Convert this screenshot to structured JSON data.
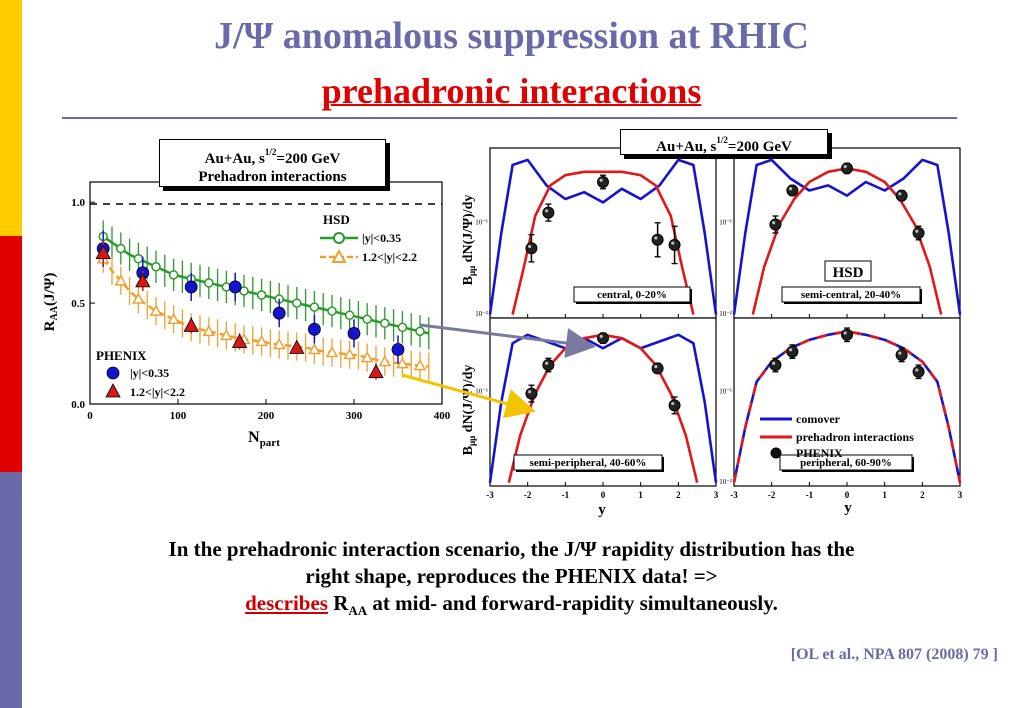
{
  "slide": {
    "title": "J/Ψ anomalous suppression at RHIC",
    "subtitle": "prehadronic interactions",
    "box_left": {
      "line1_pre": "Au+Au, s",
      "line1_sup": "1/2",
      "line1_post": "=200 GeV",
      "line2": "Prehadron interactions"
    },
    "box_right": {
      "pre": "Au+Au, s",
      "sup": "1/2",
      "post": "=200 GeV"
    },
    "body_line1": "In the prehadronic interaction scenario, the J/Ψ rapidity distribution has the",
    "body_line2": "right shape, reproduces the PHENIX data!  =>",
    "body_line3_red": "describes",
    "body_line3_R": " R",
    "body_line3_sub": "AA",
    "body_line3_rest": " at mid- and forward-rapidity simultaneously.",
    "citation": "[OL et al., NPA 807 (2008) 79 ]",
    "colors": {
      "title": "#6a6aa8",
      "accent": "#e00000",
      "green": "#2a9a2a",
      "orange": "#f0a030",
      "blue": "#1414d0",
      "red": "#e01818"
    },
    "strip_colors": [
      "#ffcc00",
      "#e00000",
      "#6a6aa8"
    ]
  },
  "chart_data": [
    {
      "type": "scatter",
      "xlabel": "N",
      "xlabel_sub": "part",
      "ylabel": "R",
      "ylabel_sub": "AA",
      "ylabel_post": "(J/Ψ)",
      "xlim": [
        0,
        400
      ],
      "ylim": [
        0,
        1.0
      ],
      "xticks": [
        "0",
        "100",
        "200",
        "300",
        "400"
      ],
      "yticks": [
        "0.0",
        "0.5",
        "1.0"
      ],
      "hsd_label": "HSD",
      "phenix_label": "PHENIX",
      "series": [
        {
          "name": "|y|<0.35",
          "kind": "model",
          "color": "#2a9a2a",
          "x": [
            15,
            25,
            35,
            45,
            55,
            65,
            75,
            85,
            95,
            105,
            115,
            125,
            135,
            145,
            155,
            165,
            175,
            185,
            195,
            205,
            215,
            225,
            235,
            245,
            255,
            265,
            275,
            285,
            295,
            305,
            315,
            325,
            335,
            345,
            355,
            365,
            375,
            385
          ],
          "y": [
            0.83,
            0.8,
            0.77,
            0.74,
            0.72,
            0.7,
            0.68,
            0.66,
            0.64,
            0.63,
            0.62,
            0.61,
            0.6,
            0.59,
            0.58,
            0.57,
            0.56,
            0.55,
            0.54,
            0.53,
            0.52,
            0.51,
            0.5,
            0.49,
            0.48,
            0.47,
            0.46,
            0.45,
            0.44,
            0.43,
            0.42,
            0.41,
            0.4,
            0.39,
            0.38,
            0.37,
            0.36,
            0.35
          ],
          "err": 0.08
        },
        {
          "name": "1.2<|y|<2.2",
          "kind": "model",
          "color": "#f0a030",
          "x": [
            15,
            25,
            35,
            45,
            55,
            65,
            75,
            85,
            95,
            105,
            115,
            125,
            135,
            145,
            155,
            165,
            175,
            185,
            195,
            205,
            215,
            225,
            235,
            245,
            255,
            265,
            275,
            285,
            295,
            305,
            315,
            325,
            335,
            345,
            355,
            365,
            375,
            385
          ],
          "y": [
            0.72,
            0.66,
            0.61,
            0.56,
            0.52,
            0.49,
            0.46,
            0.44,
            0.42,
            0.4,
            0.38,
            0.37,
            0.36,
            0.35,
            0.34,
            0.33,
            0.32,
            0.315,
            0.31,
            0.3,
            0.295,
            0.29,
            0.285,
            0.28,
            0.27,
            0.26,
            0.255,
            0.25,
            0.245,
            0.24,
            0.23,
            0.22,
            0.21,
            0.205,
            0.2,
            0.195,
            0.19,
            0.185
          ],
          "err": 0.07
        },
        {
          "name": "|y|<0.35",
          "kind": "data",
          "marker": "circle",
          "color": "#1414d0",
          "x": [
            15,
            60,
            115,
            165,
            215,
            255,
            300,
            350
          ],
          "y": [
            0.77,
            0.65,
            0.58,
            0.58,
            0.45,
            0.37,
            0.35,
            0.27
          ],
          "err": [
            0.09,
            0.08,
            0.07,
            0.07,
            0.07,
            0.07,
            0.07,
            0.07
          ]
        },
        {
          "name": "1.2<|y|<2.2",
          "kind": "data",
          "marker": "triangle",
          "color": "#d81818",
          "x": [
            15,
            60,
            115,
            170,
            235,
            325
          ],
          "y": [
            0.75,
            0.61,
            0.39,
            0.31,
            0.28,
            0.16
          ],
          "err": [
            0.06,
            0.05,
            0.04,
            0.04,
            0.03,
            0.04
          ]
        }
      ]
    },
    {
      "type": "line",
      "ylabel_pre": "B",
      "ylabel_sub": "μμ",
      "ylabel_post": " dN(J/Ψ)/dy",
      "xlabel": "y",
      "xticks": [
        "-3",
        "-2",
        "-1",
        "0",
        "1",
        "2",
        "3"
      ],
      "xlim": [
        -3,
        3
      ],
      "legend": [
        {
          "name": "comover",
          "color": "#1414d0"
        },
        {
          "name": "prehadron interactions",
          "color": "#e01818"
        },
        {
          "name": "PHENIX",
          "color": "#000000"
        }
      ],
      "hsd_label": "HSD",
      "panels": [
        {
          "label": "central, 0-20%",
          "yticks": [
            "10⁻¹",
            "10⁻²"
          ],
          "comover": [
            [
              -3,
              0.02
            ],
            [
              -2.7,
              0.5
            ],
            [
              -2.4,
              0.9
            ],
            [
              -2,
              0.93
            ],
            [
              -1.5,
              0.78
            ],
            [
              -1,
              0.7
            ],
            [
              -0.5,
              0.74
            ],
            [
              0,
              0.68
            ],
            [
              0.5,
              0.76
            ],
            [
              1,
              0.7
            ],
            [
              1.5,
              0.78
            ],
            [
              2,
              0.93
            ],
            [
              2.4,
              0.9
            ],
            [
              2.7,
              0.5
            ],
            [
              3,
              0.02
            ]
          ],
          "prehadron": [
            [
              -2.4,
              0.02
            ],
            [
              -2.1,
              0.3
            ],
            [
              -1.8,
              0.6
            ],
            [
              -1.4,
              0.78
            ],
            [
              -1,
              0.84
            ],
            [
              -0.5,
              0.86
            ],
            [
              0,
              0.86
            ],
            [
              0.5,
              0.86
            ],
            [
              1,
              0.84
            ],
            [
              1.4,
              0.78
            ],
            [
              1.8,
              0.6
            ],
            [
              2.1,
              0.3
            ],
            [
              2.4,
              0.02
            ]
          ],
          "data": [
            [
              -1.9,
              0.41,
              0.08
            ],
            [
              -1.45,
              0.62,
              0.05
            ],
            [
              0,
              0.8,
              0.04
            ],
            [
              1.45,
              0.46,
              0.1
            ],
            [
              1.9,
              0.43,
              0.11
            ]
          ]
        },
        {
          "label": "semi-central, 20-40%",
          "yticks": [
            "10⁻¹",
            "10⁻²"
          ],
          "comover": [
            [
              -3,
              0.02
            ],
            [
              -2.7,
              0.5
            ],
            [
              -2.4,
              0.9
            ],
            [
              -2,
              0.93
            ],
            [
              -1.5,
              0.82
            ],
            [
              -1,
              0.75
            ],
            [
              -0.5,
              0.78
            ],
            [
              0,
              0.72
            ],
            [
              0.5,
              0.8
            ],
            [
              1,
              0.75
            ],
            [
              1.5,
              0.82
            ],
            [
              2,
              0.93
            ],
            [
              2.4,
              0.9
            ],
            [
              2.7,
              0.5
            ],
            [
              3,
              0.02
            ]
          ],
          "prehadron": [
            [
              -2.5,
              0.02
            ],
            [
              -2.2,
              0.3
            ],
            [
              -1.8,
              0.55
            ],
            [
              -1.4,
              0.7
            ],
            [
              -1,
              0.8
            ],
            [
              -0.5,
              0.86
            ],
            [
              0,
              0.88
            ],
            [
              0.5,
              0.86
            ],
            [
              1,
              0.8
            ],
            [
              1.4,
              0.7
            ],
            [
              1.8,
              0.55
            ],
            [
              2.2,
              0.3
            ],
            [
              2.5,
              0.02
            ]
          ],
          "data": [
            [
              -1.9,
              0.55,
              0.05
            ],
            [
              -1.45,
              0.75,
              0.03
            ],
            [
              0,
              0.88,
              0.03
            ],
            [
              1.45,
              0.72,
              0.03
            ],
            [
              1.9,
              0.5,
              0.04
            ]
          ]
        },
        {
          "label": "semi-peripheral, 40-60%",
          "yticks": [
            "10⁻¹"
          ],
          "comover": [
            [
              -3,
              0.02
            ],
            [
              -2.7,
              0.5
            ],
            [
              -2.4,
              0.85
            ],
            [
              -2,
              0.9
            ],
            [
              -1.5,
              0.86
            ],
            [
              -1,
              0.82
            ],
            [
              -0.5,
              0.88
            ],
            [
              0,
              0.82
            ],
            [
              0.5,
              0.88
            ],
            [
              1,
              0.82
            ],
            [
              1.5,
              0.86
            ],
            [
              2,
              0.9
            ],
            [
              2.4,
              0.85
            ],
            [
              2.7,
              0.5
            ],
            [
              3,
              0.02
            ]
          ],
          "prehadron": [
            [
              -2.5,
              0.02
            ],
            [
              -2.2,
              0.3
            ],
            [
              -1.8,
              0.55
            ],
            [
              -1.4,
              0.72
            ],
            [
              -1,
              0.82
            ],
            [
              -0.5,
              0.88
            ],
            [
              0,
              0.9
            ],
            [
              0.5,
              0.88
            ],
            [
              1,
              0.82
            ],
            [
              1.4,
              0.72
            ],
            [
              1.8,
              0.55
            ],
            [
              2.2,
              0.3
            ],
            [
              2.5,
              0.02
            ]
          ],
          "data": [
            [
              -1.9,
              0.55,
              0.05
            ],
            [
              -1.45,
              0.72,
              0.04
            ],
            [
              0,
              0.88,
              0.03
            ],
            [
              1.45,
              0.7,
              0.03
            ],
            [
              1.9,
              0.48,
              0.05
            ]
          ]
        },
        {
          "label": "peripheral, 60-90%",
          "yticks": [
            "10⁻¹",
            "10⁻²"
          ],
          "comover": [
            [
              -3,
              0.02
            ],
            [
              -2.7,
              0.35
            ],
            [
              -2.4,
              0.62
            ],
            [
              -2,
              0.74
            ],
            [
              -1.5,
              0.82
            ],
            [
              -1,
              0.87
            ],
            [
              -0.5,
              0.9
            ],
            [
              0,
              0.92
            ],
            [
              0.5,
              0.9
            ],
            [
              1,
              0.87
            ],
            [
              1.5,
              0.82
            ],
            [
              2,
              0.74
            ],
            [
              2.4,
              0.62
            ],
            [
              2.7,
              0.35
            ],
            [
              3,
              0.02
            ]
          ],
          "prehadron": [
            [
              -3,
              0.02
            ],
            [
              -2.7,
              0.35
            ],
            [
              -2.4,
              0.62
            ],
            [
              -2,
              0.74
            ],
            [
              -1.5,
              0.82
            ],
            [
              -1,
              0.87
            ],
            [
              -0.5,
              0.9
            ],
            [
              0,
              0.92
            ],
            [
              0.5,
              0.9
            ],
            [
              1,
              0.87
            ],
            [
              1.5,
              0.82
            ],
            [
              2,
              0.74
            ],
            [
              2.4,
              0.62
            ],
            [
              2.7,
              0.35
            ],
            [
              3,
              0.02
            ]
          ],
          "data": [
            [
              -1.9,
              0.72,
              0.04
            ],
            [
              -1.45,
              0.8,
              0.04
            ],
            [
              0,
              0.9,
              0.04
            ],
            [
              1.45,
              0.78,
              0.04
            ],
            [
              1.9,
              0.68,
              0.04
            ]
          ]
        }
      ]
    }
  ]
}
